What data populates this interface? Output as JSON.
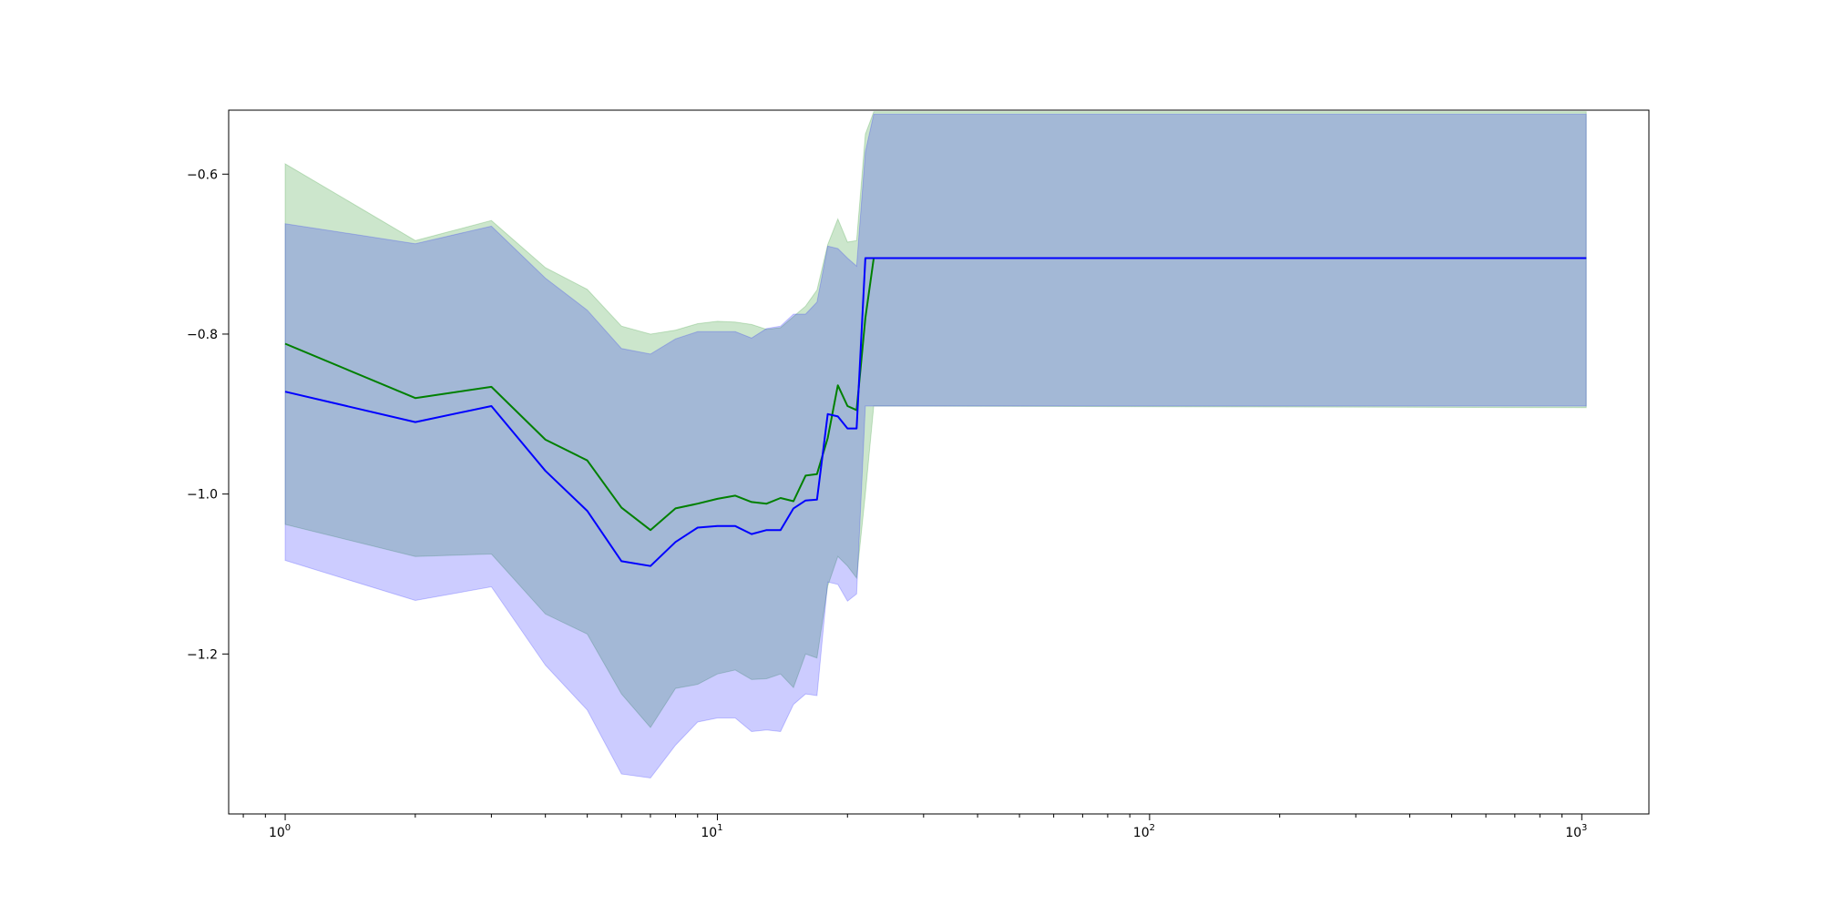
{
  "chart_data": {
    "type": "line",
    "title": "",
    "xlabel": "",
    "ylabel": "",
    "xscale": "log",
    "xlim": [
      0.74,
      1430
    ],
    "ylim": [
      -1.4,
      -0.52
    ],
    "grid": false,
    "legend": "none",
    "x_ticks": [
      {
        "value": 1,
        "base": "10",
        "exp": "0"
      },
      {
        "value": 10,
        "base": "10",
        "exp": "1"
      },
      {
        "value": 100,
        "base": "10",
        "exp": "2"
      },
      {
        "value": 1000,
        "base": "10",
        "exp": "3"
      }
    ],
    "y_ticks": [
      {
        "value": -0.6,
        "label": "−0.6"
      },
      {
        "value": -0.8,
        "label": "−0.8"
      },
      {
        "value": -1.0,
        "label": "−1.0"
      },
      {
        "value": -1.2,
        "label": "−1.2"
      }
    ],
    "series": [
      {
        "color": "#008000",
        "band_color": "#008000",
        "band_opacity": 0.2,
        "x": [
          1,
          2,
          3,
          4,
          5,
          6,
          7,
          8,
          9,
          10,
          11,
          12,
          13,
          14,
          15,
          16,
          17,
          18,
          19,
          20,
          21,
          22,
          23,
          1024
        ],
        "y": [
          -0.812,
          -0.88,
          -0.866,
          -0.932,
          -0.958,
          -1.017,
          -1.045,
          -1.018,
          -1.012,
          -1.006,
          -1.002,
          -1.01,
          -1.012,
          -1.005,
          -1.009,
          -0.977,
          -0.975,
          -0.93,
          -0.864,
          -0.89,
          -0.895,
          -0.78,
          -0.705,
          -0.705
        ],
        "lower": [
          -1.038,
          -1.078,
          -1.075,
          -1.15,
          -1.175,
          -1.25,
          -1.292,
          -1.243,
          -1.238,
          -1.225,
          -1.22,
          -1.232,
          -1.231,
          -1.225,
          -1.242,
          -1.2,
          -1.205,
          -1.115,
          -1.078,
          -1.09,
          -1.105,
          -1.0,
          -0.89,
          -0.892
        ],
        "upper": [
          -0.587,
          -0.683,
          -0.658,
          -0.717,
          -0.744,
          -0.79,
          -0.8,
          -0.795,
          -0.787,
          -0.784,
          -0.785,
          -0.788,
          -0.794,
          -0.792,
          -0.778,
          -0.765,
          -0.745,
          -0.688,
          -0.656,
          -0.685,
          -0.683,
          -0.55,
          -0.522,
          -0.522
        ]
      },
      {
        "color": "#0000ff",
        "band_color": "#0000ff",
        "band_opacity": 0.2,
        "x": [
          1,
          2,
          3,
          4,
          5,
          6,
          7,
          8,
          9,
          10,
          11,
          12,
          13,
          14,
          15,
          16,
          17,
          18,
          19,
          20,
          21,
          22,
          23,
          1024
        ],
        "y": [
          -0.872,
          -0.91,
          -0.89,
          -0.971,
          -1.021,
          -1.084,
          -1.09,
          -1.06,
          -1.042,
          -1.04,
          -1.04,
          -1.05,
          -1.045,
          -1.045,
          -1.018,
          -1.008,
          -1.007,
          -0.9,
          -0.903,
          -0.918,
          -0.918,
          -0.705,
          -0.705,
          -0.705
        ],
        "lower": [
          -1.083,
          -1.133,
          -1.116,
          -1.214,
          -1.27,
          -1.35,
          -1.355,
          -1.314,
          -1.285,
          -1.28,
          -1.28,
          -1.297,
          -1.295,
          -1.297,
          -1.263,
          -1.25,
          -1.252,
          -1.11,
          -1.113,
          -1.134,
          -1.125,
          -0.89,
          -0.89,
          -0.89
        ],
        "upper": [
          -0.662,
          -0.687,
          -0.665,
          -0.73,
          -0.77,
          -0.818,
          -0.825,
          -0.806,
          -0.797,
          -0.797,
          -0.797,
          -0.805,
          -0.793,
          -0.79,
          -0.775,
          -0.775,
          -0.76,
          -0.69,
          -0.693,
          -0.705,
          -0.715,
          -0.572,
          -0.525,
          -0.525
        ]
      }
    ]
  }
}
